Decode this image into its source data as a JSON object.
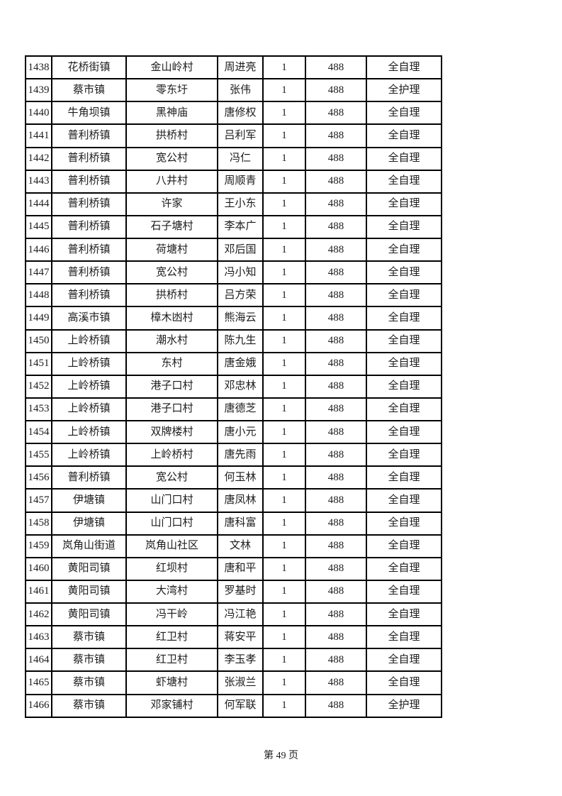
{
  "page": {
    "footer_text": "第 49 页"
  },
  "table": {
    "rows": [
      [
        "1438",
        "花桥街镇",
        "金山岭村",
        "周进亮",
        "1",
        "488",
        "全自理"
      ],
      [
        "1439",
        "蔡市镇",
        "零东圩",
        "张伟",
        "1",
        "488",
        "全护理"
      ],
      [
        "1440",
        "牛角坝镇",
        "黑神庙",
        "唐修权",
        "1",
        "488",
        "全自理"
      ],
      [
        "1441",
        "普利桥镇",
        "拱桥村",
        "吕利军",
        "1",
        "488",
        "全自理"
      ],
      [
        "1442",
        "普利桥镇",
        "宽公村",
        "冯仁",
        "1",
        "488",
        "全自理"
      ],
      [
        "1443",
        "普利桥镇",
        "八井村",
        "周顺青",
        "1",
        "488",
        "全自理"
      ],
      [
        "1444",
        "普利桥镇",
        "许家",
        "王小东",
        "1",
        "488",
        "全自理"
      ],
      [
        "1445",
        "普利桥镇",
        "石子塘村",
        "李本广",
        "1",
        "488",
        "全自理"
      ],
      [
        "1446",
        "普利桥镇",
        "荷塘村",
        "邓后国",
        "1",
        "488",
        "全自理"
      ],
      [
        "1447",
        "普利桥镇",
        "宽公村",
        "冯小知",
        "1",
        "488",
        "全自理"
      ],
      [
        "1448",
        "普利桥镇",
        "拱桥村",
        "吕方荣",
        "1",
        "488",
        "全自理"
      ],
      [
        "1449",
        "高溪市镇",
        "樟木凼村",
        "熊海云",
        "1",
        "488",
        "全自理"
      ],
      [
        "1450",
        "上岭桥镇",
        "潮水村",
        "陈九生",
        "1",
        "488",
        "全自理"
      ],
      [
        "1451",
        "上岭桥镇",
        "东村",
        "唐金娥",
        "1",
        "488",
        "全自理"
      ],
      [
        "1452",
        "上岭桥镇",
        "港子口村",
        "邓忠林",
        "1",
        "488",
        "全自理"
      ],
      [
        "1453",
        "上岭桥镇",
        "港子口村",
        "唐德芝",
        "1",
        "488",
        "全自理"
      ],
      [
        "1454",
        "上岭桥镇",
        "双牌楼村",
        "唐小元",
        "1",
        "488",
        "全自理"
      ],
      [
        "1455",
        "上岭桥镇",
        "上岭桥村",
        "唐先雨",
        "1",
        "488",
        "全自理"
      ],
      [
        "1456",
        "普利桥镇",
        "宽公村",
        "何玉林",
        "1",
        "488",
        "全自理"
      ],
      [
        "1457",
        "伊塘镇",
        "山门口村",
        "唐凤林",
        "1",
        "488",
        "全自理"
      ],
      [
        "1458",
        "伊塘镇",
        "山门口村",
        "唐科富",
        "1",
        "488",
        "全自理"
      ],
      [
        "1459",
        "岚角山街道",
        "岚角山社区",
        "文林",
        "1",
        "488",
        "全自理"
      ],
      [
        "1460",
        "黄阳司镇",
        "红坝村",
        "唐和平",
        "1",
        "488",
        "全自理"
      ],
      [
        "1461",
        "黄阳司镇",
        "大湾村",
        "罗基时",
        "1",
        "488",
        "全自理"
      ],
      [
        "1462",
        "黄阳司镇",
        "冯干岭",
        "冯江艳",
        "1",
        "488",
        "全自理"
      ],
      [
        "1463",
        "蔡市镇",
        "红卫村",
        "蒋安平",
        "1",
        "488",
        "全自理"
      ],
      [
        "1464",
        "蔡市镇",
        "红卫村",
        "李玉孝",
        "1",
        "488",
        "全自理"
      ],
      [
        "1465",
        "蔡市镇",
        "虾塘村",
        "张淑兰",
        "1",
        "488",
        "全自理"
      ],
      [
        "1466",
        "蔡市镇",
        "邓家铺村",
        "何军联",
        "1",
        "488",
        "全护理"
      ]
    ]
  }
}
